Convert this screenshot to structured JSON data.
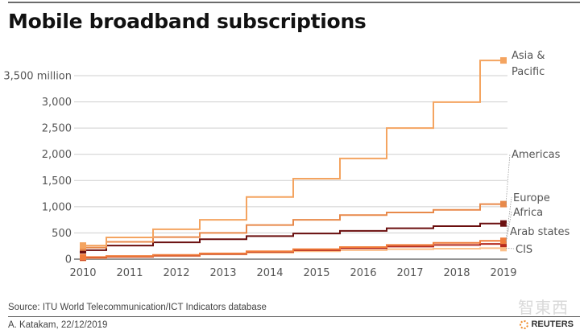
{
  "title": "Mobile broadband subscriptions",
  "source": "Source: ITU World Telecommunication/ICT Indicators database",
  "byline": "A. Katakam,  22/12/2019",
  "brand": "REUTERS",
  "watermark": "智東西",
  "chart_data": {
    "type": "line",
    "step": true,
    "title": "Mobile broadband subscriptions",
    "xlabel": "",
    "ylabel": "million",
    "x": [
      2010,
      2011,
      2012,
      2013,
      2014,
      2015,
      2016,
      2017,
      2018,
      2019
    ],
    "ylim": [
      0,
      3500
    ],
    "yticks": [
      0,
      500,
      1000,
      1500,
      2000,
      2500,
      3000,
      3500
    ],
    "ytick_labels": [
      "0",
      "500",
      "1,000",
      "1,500",
      "2,000",
      "2,500",
      "3,000",
      "3,500 million"
    ],
    "xtick_labels": [
      "2010",
      "2011",
      "2012",
      "2013",
      "2014",
      "2015",
      "2016",
      "2017",
      "2018",
      "2019"
    ],
    "grid": true,
    "legend": "direct-labels-right",
    "series": [
      {
        "name": "Asia & Pacific",
        "label_lines": [
          "Asia &",
          "Pacific"
        ],
        "color": "#f4a460",
        "values": [
          260,
          415,
          570,
          750,
          1185,
          1535,
          1920,
          2500,
          2995,
          3790
        ]
      },
      {
        "name": "Americas",
        "label_lines": [
          "Americas"
        ],
        "color": "#e8894a",
        "values": [
          220,
          330,
          420,
          500,
          650,
          750,
          840,
          890,
          940,
          1050
        ]
      },
      {
        "name": "Europe",
        "label_lines": [
          "Europe"
        ],
        "color": "#f07c3a",
        "values": [
          40,
          60,
          80,
          110,
          150,
          190,
          230,
          270,
          310,
          350
        ]
      },
      {
        "name": "Africa",
        "label_lines": [
          "Africa"
        ],
        "color": "#b52a1e",
        "values": [
          30,
          50,
          70,
          100,
          140,
          170,
          210,
          240,
          270,
          290
        ]
      },
      {
        "name": "Arab states",
        "label_lines": [
          "Arab states"
        ],
        "color": "#6b0f0f",
        "values": [
          170,
          260,
          320,
          380,
          440,
          490,
          540,
          590,
          630,
          680
        ]
      },
      {
        "name": "CIS",
        "label_lines": [
          "CIS"
        ],
        "color": "#fbbf8a",
        "values": [
          20,
          40,
          60,
          90,
          120,
          150,
          170,
          190,
          200,
          210
        ]
      }
    ]
  }
}
